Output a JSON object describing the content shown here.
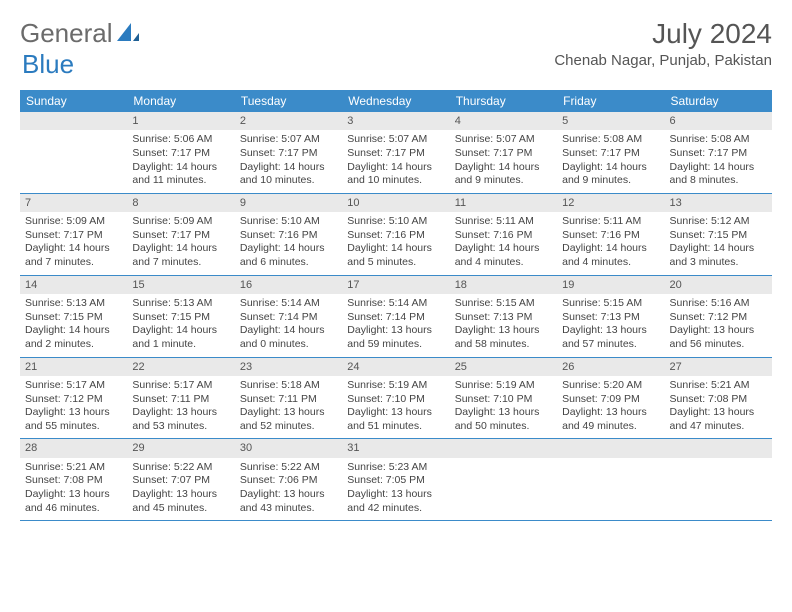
{
  "logo": {
    "text1": "General",
    "text2": "Blue"
  },
  "title": "July 2024",
  "location": "Chenab Nagar, Punjab, Pakistan",
  "colors": {
    "header_bg": "#3b8bc9",
    "header_text": "#ffffff",
    "daynum_bg": "#e9e9e9",
    "border": "#3b8bc9",
    "logo_gray": "#6b6b6b",
    "logo_blue": "#2b7bbf"
  },
  "weekdays": [
    "Sunday",
    "Monday",
    "Tuesday",
    "Wednesday",
    "Thursday",
    "Friday",
    "Saturday"
  ],
  "weeks": [
    [
      {
        "empty": true
      },
      {
        "day": "1",
        "sunrise": "Sunrise: 5:06 AM",
        "sunset": "Sunset: 7:17 PM",
        "daylight": "Daylight: 14 hours and 11 minutes."
      },
      {
        "day": "2",
        "sunrise": "Sunrise: 5:07 AM",
        "sunset": "Sunset: 7:17 PM",
        "daylight": "Daylight: 14 hours and 10 minutes."
      },
      {
        "day": "3",
        "sunrise": "Sunrise: 5:07 AM",
        "sunset": "Sunset: 7:17 PM",
        "daylight": "Daylight: 14 hours and 10 minutes."
      },
      {
        "day": "4",
        "sunrise": "Sunrise: 5:07 AM",
        "sunset": "Sunset: 7:17 PM",
        "daylight": "Daylight: 14 hours and 9 minutes."
      },
      {
        "day": "5",
        "sunrise": "Sunrise: 5:08 AM",
        "sunset": "Sunset: 7:17 PM",
        "daylight": "Daylight: 14 hours and 9 minutes."
      },
      {
        "day": "6",
        "sunrise": "Sunrise: 5:08 AM",
        "sunset": "Sunset: 7:17 PM",
        "daylight": "Daylight: 14 hours and 8 minutes."
      }
    ],
    [
      {
        "day": "7",
        "sunrise": "Sunrise: 5:09 AM",
        "sunset": "Sunset: 7:17 PM",
        "daylight": "Daylight: 14 hours and 7 minutes."
      },
      {
        "day": "8",
        "sunrise": "Sunrise: 5:09 AM",
        "sunset": "Sunset: 7:17 PM",
        "daylight": "Daylight: 14 hours and 7 minutes."
      },
      {
        "day": "9",
        "sunrise": "Sunrise: 5:10 AM",
        "sunset": "Sunset: 7:16 PM",
        "daylight": "Daylight: 14 hours and 6 minutes."
      },
      {
        "day": "10",
        "sunrise": "Sunrise: 5:10 AM",
        "sunset": "Sunset: 7:16 PM",
        "daylight": "Daylight: 14 hours and 5 minutes."
      },
      {
        "day": "11",
        "sunrise": "Sunrise: 5:11 AM",
        "sunset": "Sunset: 7:16 PM",
        "daylight": "Daylight: 14 hours and 4 minutes."
      },
      {
        "day": "12",
        "sunrise": "Sunrise: 5:11 AM",
        "sunset": "Sunset: 7:16 PM",
        "daylight": "Daylight: 14 hours and 4 minutes."
      },
      {
        "day": "13",
        "sunrise": "Sunrise: 5:12 AM",
        "sunset": "Sunset: 7:15 PM",
        "daylight": "Daylight: 14 hours and 3 minutes."
      }
    ],
    [
      {
        "day": "14",
        "sunrise": "Sunrise: 5:13 AM",
        "sunset": "Sunset: 7:15 PM",
        "daylight": "Daylight: 14 hours and 2 minutes."
      },
      {
        "day": "15",
        "sunrise": "Sunrise: 5:13 AM",
        "sunset": "Sunset: 7:15 PM",
        "daylight": "Daylight: 14 hours and 1 minute."
      },
      {
        "day": "16",
        "sunrise": "Sunrise: 5:14 AM",
        "sunset": "Sunset: 7:14 PM",
        "daylight": "Daylight: 14 hours and 0 minutes."
      },
      {
        "day": "17",
        "sunrise": "Sunrise: 5:14 AM",
        "sunset": "Sunset: 7:14 PM",
        "daylight": "Daylight: 13 hours and 59 minutes."
      },
      {
        "day": "18",
        "sunrise": "Sunrise: 5:15 AM",
        "sunset": "Sunset: 7:13 PM",
        "daylight": "Daylight: 13 hours and 58 minutes."
      },
      {
        "day": "19",
        "sunrise": "Sunrise: 5:15 AM",
        "sunset": "Sunset: 7:13 PM",
        "daylight": "Daylight: 13 hours and 57 minutes."
      },
      {
        "day": "20",
        "sunrise": "Sunrise: 5:16 AM",
        "sunset": "Sunset: 7:12 PM",
        "daylight": "Daylight: 13 hours and 56 minutes."
      }
    ],
    [
      {
        "day": "21",
        "sunrise": "Sunrise: 5:17 AM",
        "sunset": "Sunset: 7:12 PM",
        "daylight": "Daylight: 13 hours and 55 minutes."
      },
      {
        "day": "22",
        "sunrise": "Sunrise: 5:17 AM",
        "sunset": "Sunset: 7:11 PM",
        "daylight": "Daylight: 13 hours and 53 minutes."
      },
      {
        "day": "23",
        "sunrise": "Sunrise: 5:18 AM",
        "sunset": "Sunset: 7:11 PM",
        "daylight": "Daylight: 13 hours and 52 minutes."
      },
      {
        "day": "24",
        "sunrise": "Sunrise: 5:19 AM",
        "sunset": "Sunset: 7:10 PM",
        "daylight": "Daylight: 13 hours and 51 minutes."
      },
      {
        "day": "25",
        "sunrise": "Sunrise: 5:19 AM",
        "sunset": "Sunset: 7:10 PM",
        "daylight": "Daylight: 13 hours and 50 minutes."
      },
      {
        "day": "26",
        "sunrise": "Sunrise: 5:20 AM",
        "sunset": "Sunset: 7:09 PM",
        "daylight": "Daylight: 13 hours and 49 minutes."
      },
      {
        "day": "27",
        "sunrise": "Sunrise: 5:21 AM",
        "sunset": "Sunset: 7:08 PM",
        "daylight": "Daylight: 13 hours and 47 minutes."
      }
    ],
    [
      {
        "day": "28",
        "sunrise": "Sunrise: 5:21 AM",
        "sunset": "Sunset: 7:08 PM",
        "daylight": "Daylight: 13 hours and 46 minutes."
      },
      {
        "day": "29",
        "sunrise": "Sunrise: 5:22 AM",
        "sunset": "Sunset: 7:07 PM",
        "daylight": "Daylight: 13 hours and 45 minutes."
      },
      {
        "day": "30",
        "sunrise": "Sunrise: 5:22 AM",
        "sunset": "Sunset: 7:06 PM",
        "daylight": "Daylight: 13 hours and 43 minutes."
      },
      {
        "day": "31",
        "sunrise": "Sunrise: 5:23 AM",
        "sunset": "Sunset: 7:05 PM",
        "daylight": "Daylight: 13 hours and 42 minutes."
      },
      {
        "empty": true
      },
      {
        "empty": true
      },
      {
        "empty": true
      }
    ]
  ]
}
